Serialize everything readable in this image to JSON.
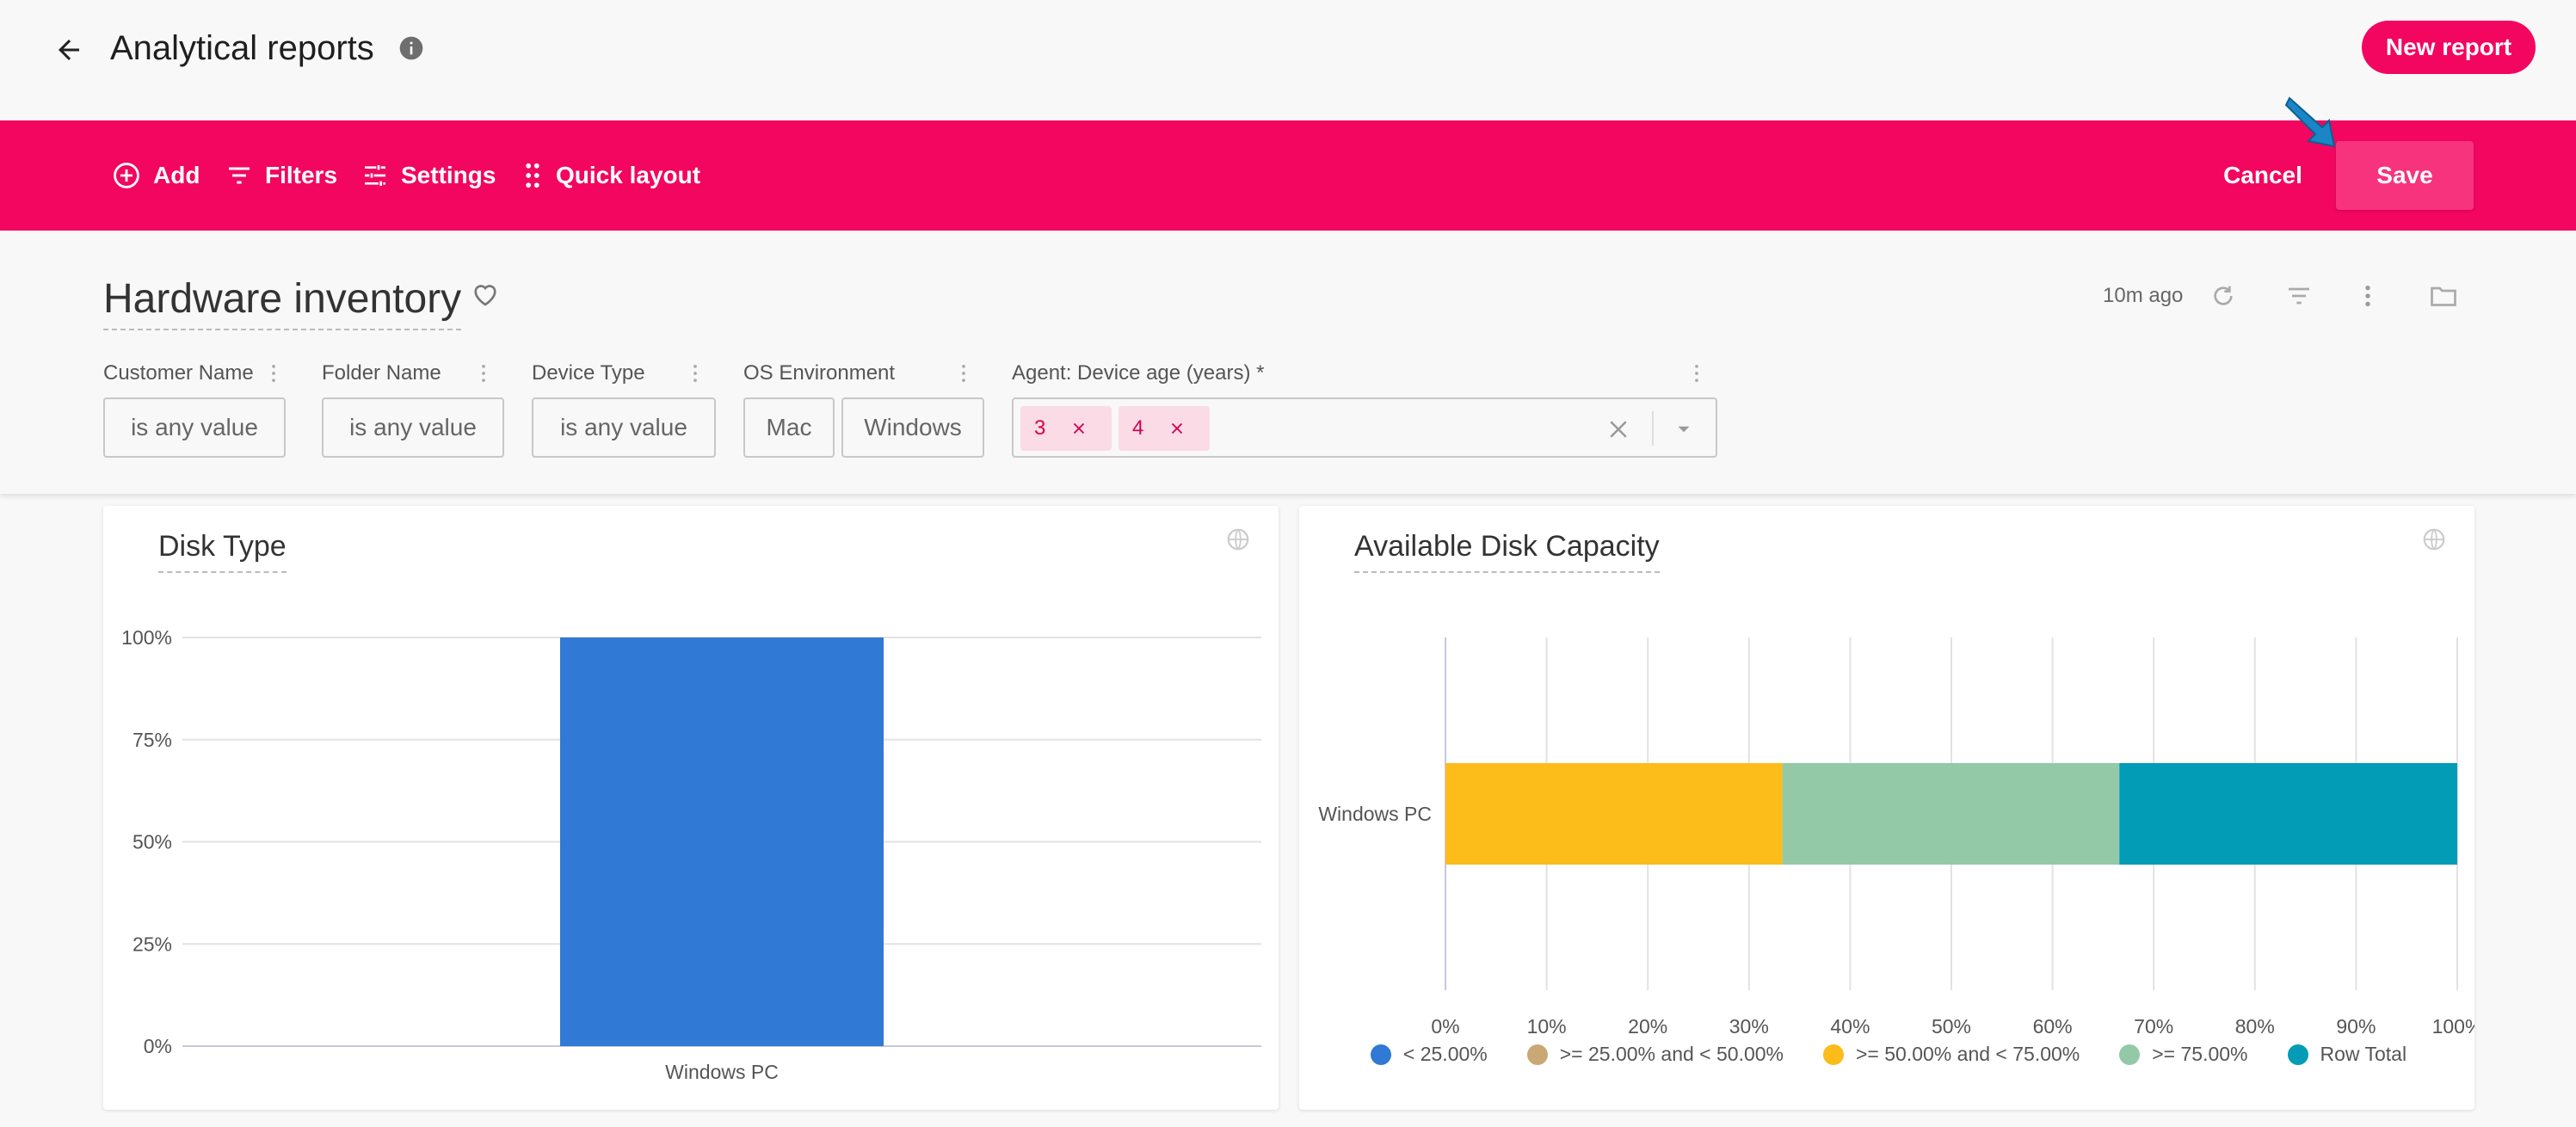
{
  "header": {
    "title": "Analytical reports",
    "new_report_label": "New report"
  },
  "toolbar": {
    "add_label": "Add",
    "filters_label": "Filters",
    "settings_label": "Settings",
    "quick_layout_label": "Quick layout",
    "cancel_label": "Cancel",
    "save_label": "Save"
  },
  "report": {
    "title": "Hardware inventory",
    "updated": "10m ago",
    "filters": [
      {
        "label": "Customer Name",
        "value": "is any value"
      },
      {
        "label": "Folder Name",
        "value": "is any value"
      },
      {
        "label": "Device Type",
        "value": "is any value"
      },
      {
        "label": "OS Environment",
        "options": [
          "Mac",
          "Windows"
        ]
      },
      {
        "label": "Agent: Device age (years) *",
        "chips": [
          "3",
          "4"
        ]
      }
    ]
  },
  "colors": {
    "brand": "#f2065f",
    "bar_blue": "#3079d4",
    "yellow": "#fcbc1a",
    "green": "#94c9a8",
    "teal": "#029cb6",
    "tan": "#c9a873"
  },
  "chart_data": [
    {
      "type": "bar",
      "title": "Disk Type",
      "categories": [
        "Windows PC"
      ],
      "values": [
        100
      ],
      "ylim": [
        0,
        100
      ],
      "yticks": [
        "0%",
        "25%",
        "50%",
        "75%",
        "100%"
      ],
      "xlabel": "",
      "ylabel": ""
    },
    {
      "type": "bar",
      "orientation": "horizontal-stacked-percent",
      "title": "Available Disk Capacity",
      "categories": [
        "Windows PC"
      ],
      "xlim": [
        0,
        100
      ],
      "xticks": [
        "0%",
        "10%",
        "20%",
        "30%",
        "40%",
        "50%",
        "60%",
        "70%",
        "80%",
        "90%",
        "100%"
      ],
      "series": [
        {
          "name": "< 25.00%",
          "values": [
            0
          ],
          "color": "#3079d4"
        },
        {
          "name": ">= 25.00% and < 50.00%",
          "values": [
            0
          ],
          "color": "#c9a873"
        },
        {
          "name": ">= 50.00% and < 75.00%",
          "values": [
            33.3
          ],
          "color": "#fcbc1a"
        },
        {
          "name": ">= 75.00%",
          "values": [
            33.3
          ],
          "color": "#94c9a8"
        },
        {
          "name": "Row Total",
          "values": [
            33.4
          ],
          "color": "#029cb6"
        }
      ],
      "legend": "bottom"
    }
  ]
}
